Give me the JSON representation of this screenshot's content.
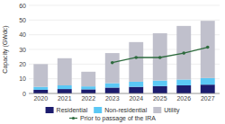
{
  "chart_data": {
    "type": "bar",
    "stacked": true,
    "categories": [
      "2020",
      "2021",
      "2022",
      "2023",
      "2024",
      "2025",
      "2026",
      "2027"
    ],
    "series": [
      {
        "name": "Residential",
        "type": "bar",
        "color": "#1c1c6e",
        "values": [
          2.5,
          3.0,
          2.8,
          4.0,
          4.5,
          5.0,
          5.5,
          6.0
        ]
      },
      {
        "name": "Non-residential",
        "type": "bar",
        "color": "#5bc8f5",
        "values": [
          2.0,
          2.5,
          2.0,
          3.0,
          3.5,
          3.8,
          4.0,
          4.5
        ]
      },
      {
        "name": "Utility",
        "type": "bar",
        "color": "#c0c0cc",
        "values": [
          15.5,
          18.5,
          10.0,
          20.5,
          27.0,
          32.2,
          36.5,
          39.0
        ]
      },
      {
        "name": "Prior to passage of the IRA",
        "type": "line",
        "color": "#2e6b3e",
        "marker": "circle",
        "values": [
          null,
          null,
          null,
          21.0,
          24.5,
          24.5,
          27.5,
          31.5
        ]
      }
    ],
    "y_label": "Capacity (GWdc)",
    "ylim": [
      0,
      60
    ],
    "yticks": [
      0,
      10,
      20,
      30,
      40,
      50,
      60
    ],
    "grid": true,
    "legend": "bottom"
  }
}
